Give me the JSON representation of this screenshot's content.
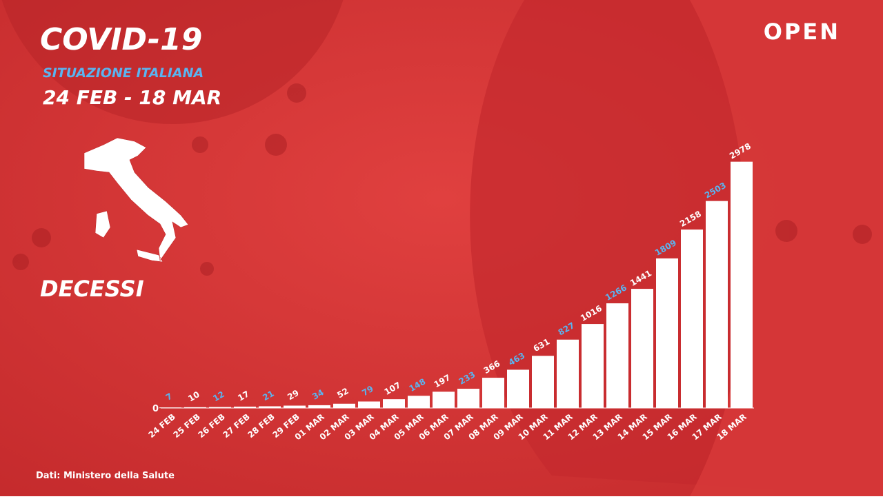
{
  "header": {
    "title": "COVID-19",
    "subtitle": "SITUAZIONE ITALIANA",
    "period": "24 FEB - 18 MAR",
    "logo": "OPEN"
  },
  "chart_data": {
    "type": "bar",
    "title": "DECESSI",
    "categories": [
      "24 FEB",
      "25 FEB",
      "26 FEB",
      "27 FEB",
      "28 FEB",
      "29 FEB",
      "01 MAR",
      "02 MAR",
      "03 MAR",
      "04 MAR",
      "05 MAR",
      "06 MAR",
      "07 MAR",
      "08 MAR",
      "09 MAR",
      "10 MAR",
      "11 MAR",
      "12 MAR",
      "13 MAR",
      "14 MAR",
      "15 MAR",
      "16 MAR",
      "17 MAR",
      "18 MAR"
    ],
    "values": [
      7,
      10,
      12,
      17,
      21,
      29,
      34,
      52,
      79,
      107,
      148,
      197,
      233,
      366,
      463,
      631,
      827,
      1016,
      1266,
      1441,
      1809,
      2158,
      2503,
      2978
    ],
    "color": "#ffffff",
    "label_colors": [
      "#5ab4f0",
      "#ffffff"
    ],
    "ylim": [
      0,
      3000
    ],
    "yticks": [
      0
    ]
  },
  "source": "Dati: Ministero della Salute"
}
